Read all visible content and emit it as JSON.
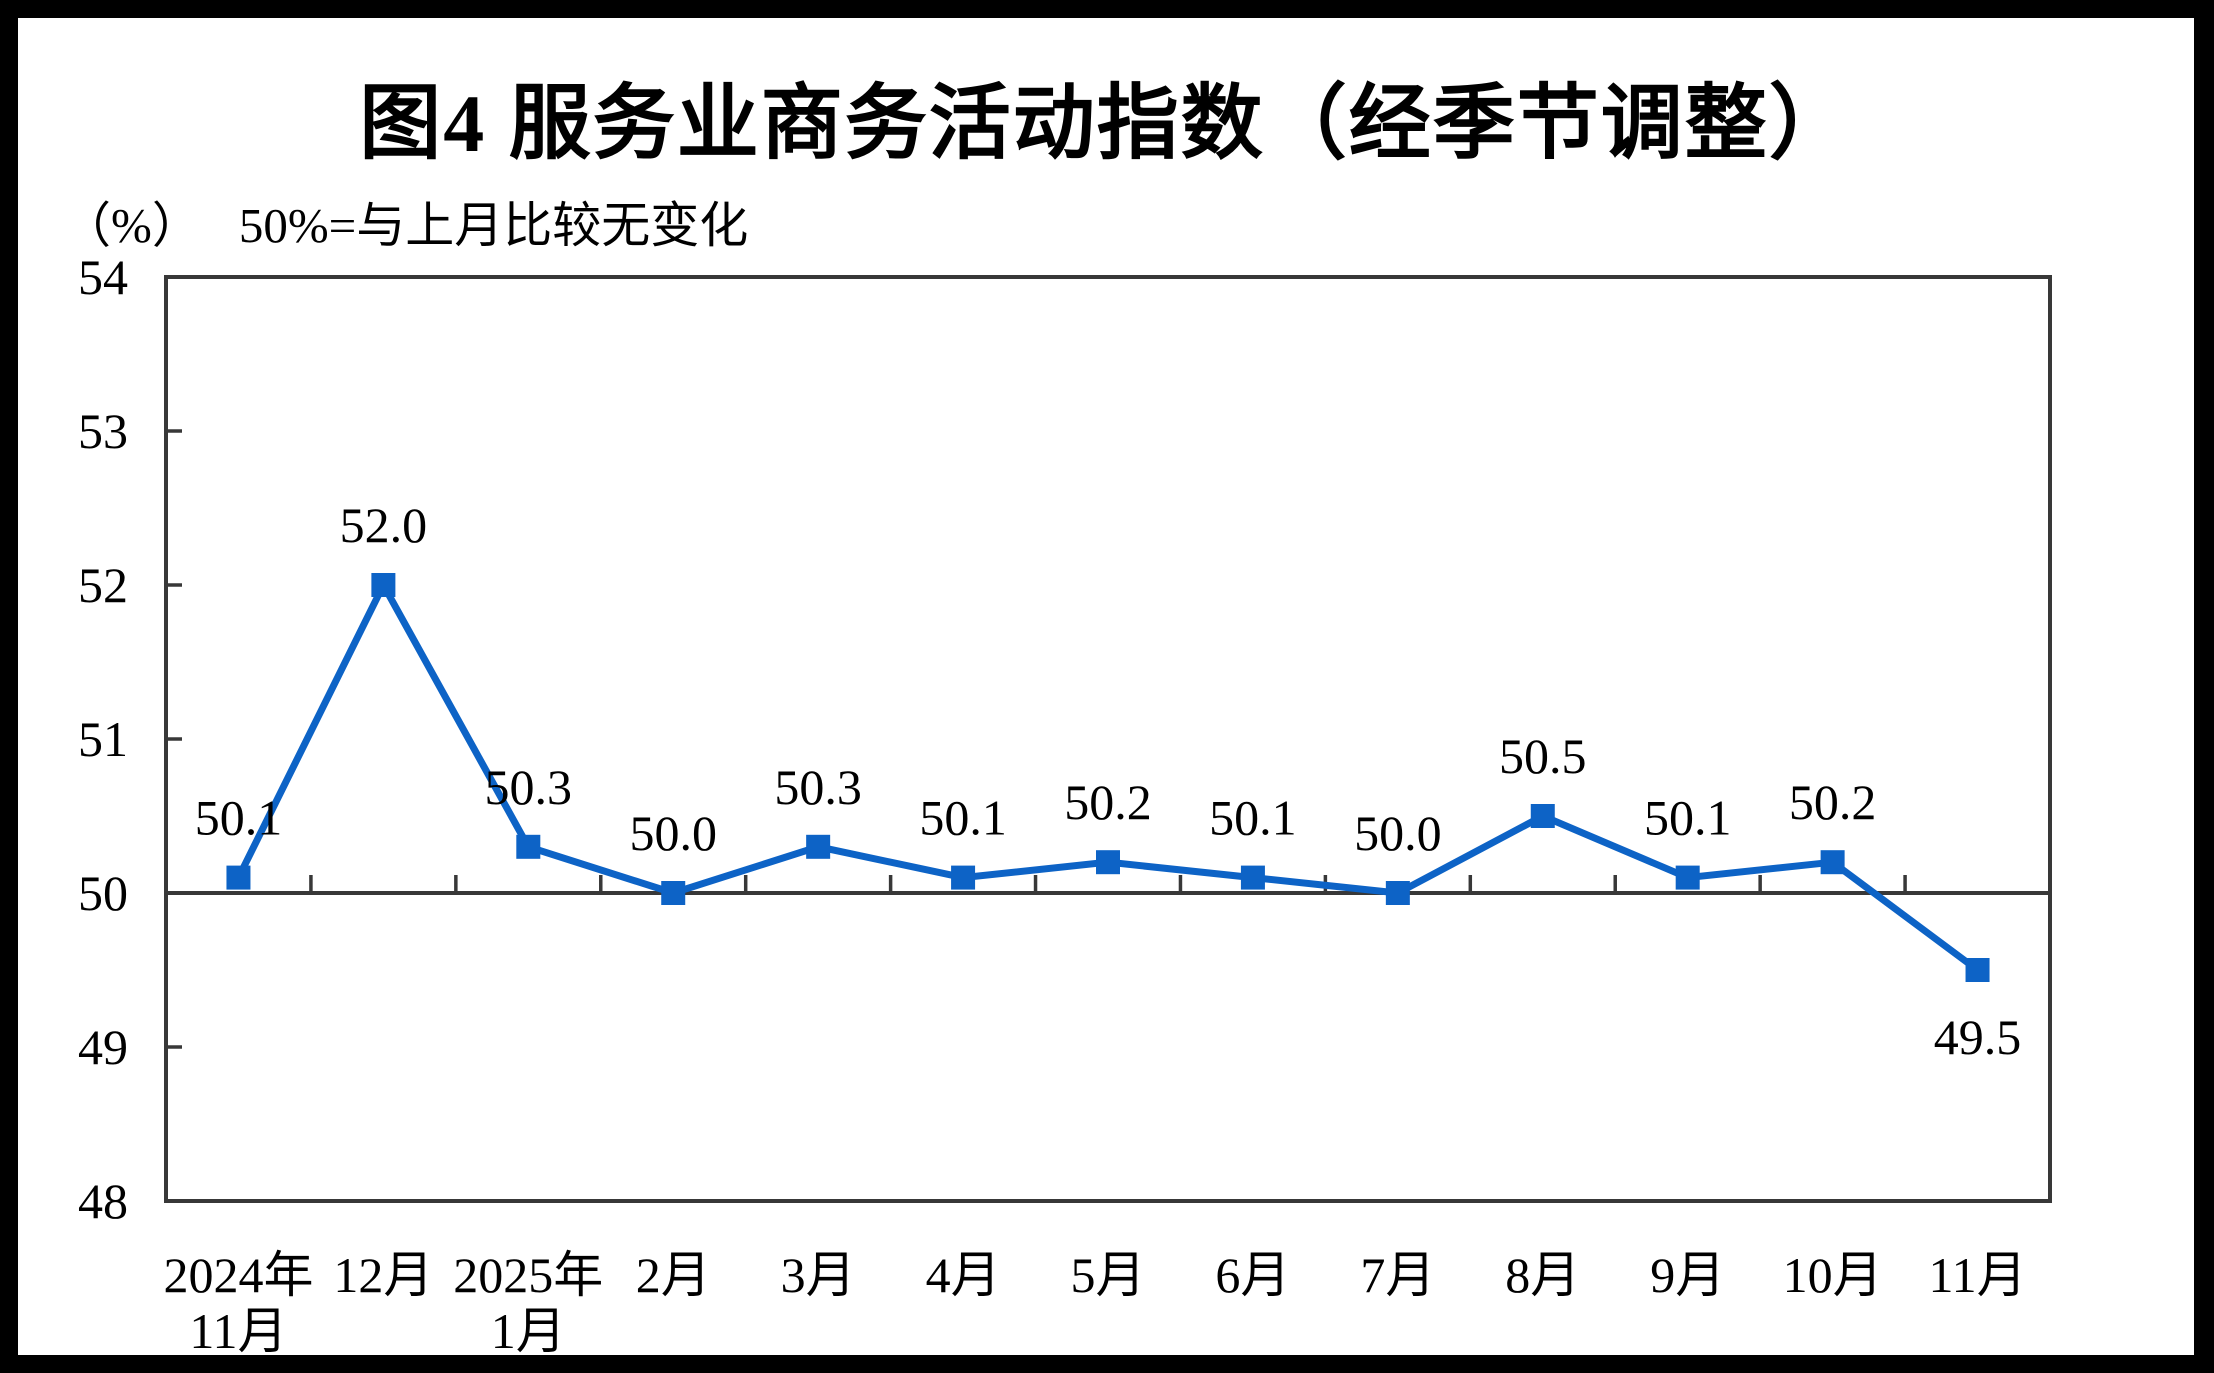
{
  "title": "图4 服务业商务活动指数（经季节调整）",
  "subtitle": {
    "unit": "（%）",
    "note": "50%=与上月比较无变化"
  },
  "chart_data": {
    "type": "line",
    "title": "图4 服务业商务活动指数（经季节调整）",
    "ylabel": "（%）",
    "annotation": "50%=与上月比较无变化",
    "categories": [
      [
        "2024年",
        "11月"
      ],
      [
        "12月"
      ],
      [
        "2025年",
        "1月"
      ],
      [
        "2月"
      ],
      [
        "3月"
      ],
      [
        "4月"
      ],
      [
        "5月"
      ],
      [
        "6月"
      ],
      [
        "7月"
      ],
      [
        "8月"
      ],
      [
        "9月"
      ],
      [
        "10月"
      ],
      [
        "11月"
      ]
    ],
    "values": [
      50.1,
      52.0,
      50.3,
      50.0,
      50.3,
      50.1,
      50.2,
      50.1,
      50.0,
      50.5,
      50.1,
      50.2,
      49.5
    ],
    "data_labels": [
      "50.1",
      "52.0",
      "50.3",
      "50.0",
      "50.3",
      "50.1",
      "50.2",
      "50.1",
      "50.0",
      "50.5",
      "50.1",
      "50.2",
      "49.5"
    ],
    "data_label_position": [
      "above",
      "above",
      "above",
      "above",
      "above",
      "above",
      "above",
      "above",
      "above",
      "above",
      "above",
      "above",
      "below"
    ],
    "ylim": [
      48,
      54
    ],
    "yticks": [
      "48",
      "49",
      "50",
      "51",
      "52",
      "53",
      "54"
    ],
    "baseline_value": 50,
    "grid": false,
    "legend_position": "none",
    "series_color": "#0D63C6",
    "axis_color": "#383838",
    "text_color": "#000000",
    "marker": "square"
  }
}
